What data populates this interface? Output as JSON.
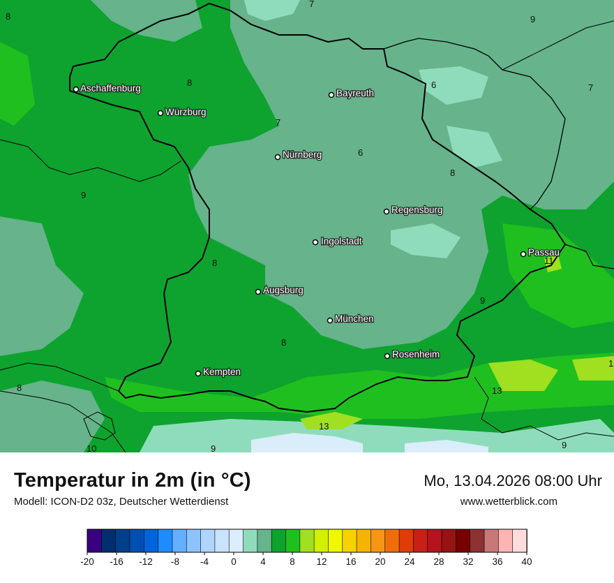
{
  "header": {
    "title": "Temperatur in 2m (in °C)",
    "model": "Modell: ICON-D2 03z, Deutscher Wetterdienst",
    "datetime": "Mo, 13.04.2026 08:00 Uhr",
    "website": "www.wetterblick.com"
  },
  "colors": {
    "t4_6": "#66b38c",
    "t6_8": "#0da32e",
    "t8_10": "#20bf20",
    "t10_12": "#a0e020",
    "t0_2": "#d9edfa",
    "t2_4": "#8fdcbc",
    "borders": "#000000"
  },
  "cities": [
    {
      "name": "Aschaffenburg"
    },
    {
      "name": "Würzburg"
    },
    {
      "name": "Bayreuth"
    },
    {
      "name": "Nürnberg"
    },
    {
      "name": "Regensburg"
    },
    {
      "name": "Ingolstadt"
    },
    {
      "name": "Passau"
    },
    {
      "name": "Augsburg"
    },
    {
      "name": "München"
    },
    {
      "name": "Rosenheim"
    },
    {
      "name": "Kempten"
    }
  ],
  "isolabels": [
    "7",
    "9",
    "8",
    "8",
    "7",
    "6",
    "7",
    "6",
    "8",
    "9",
    "8",
    "9",
    "11",
    "8",
    "13",
    "13",
    "10",
    "9",
    "9",
    "1",
    "8"
  ],
  "colorbar": {
    "ticks": [
      "-20",
      "-16",
      "-12",
      "-8",
      "-4",
      "0",
      "4",
      "8",
      "12",
      "16",
      "20",
      "24",
      "28",
      "32",
      "36",
      "40"
    ],
    "colors": [
      "#3a0080",
      "#002e6e",
      "#003f8a",
      "#0050b4",
      "#0064dc",
      "#1e8cff",
      "#64afff",
      "#8cc3ff",
      "#aed5ff",
      "#c8e2ff",
      "#dcedff",
      "#8fdcbc",
      "#66b38c",
      "#0da32e",
      "#20bf20",
      "#a0e020",
      "#d2f000",
      "#f0f800",
      "#f5d200",
      "#f5b400",
      "#f59614",
      "#f06e0a",
      "#e03c0a",
      "#c82014",
      "#b4141e",
      "#961414",
      "#780000",
      "#8c3232",
      "#c87878",
      "#ffb4b4",
      "#ffdcdc"
    ]
  }
}
